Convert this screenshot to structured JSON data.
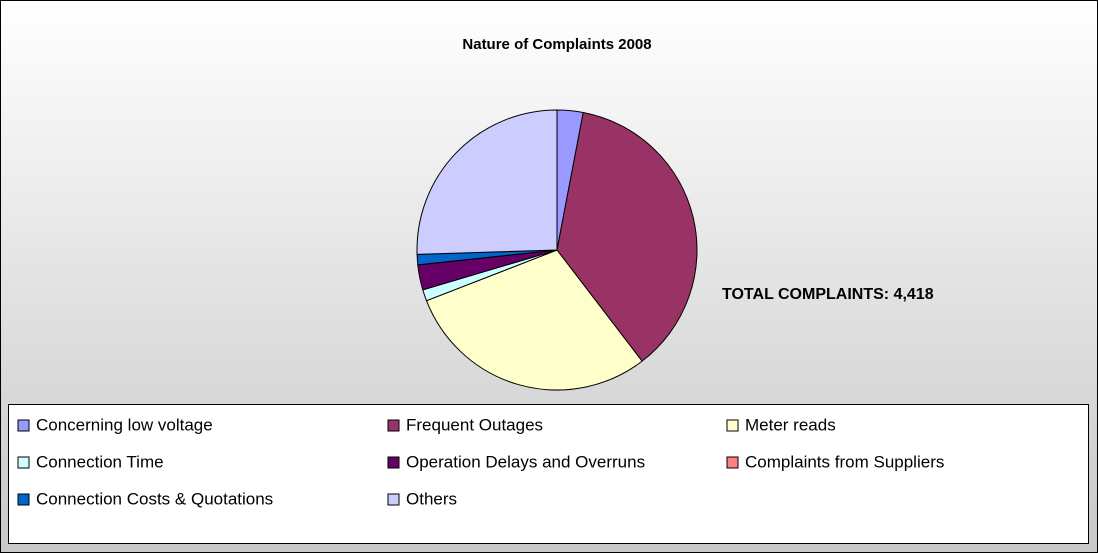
{
  "chart_data": {
    "type": "pie",
    "title": "Nature of Complaints 2008",
    "annotation": "TOTAL COMPLAINTS: 4,418",
    "categories": [
      "Concerning low voltage",
      "Frequent Outages",
      "Meter reads",
      "Connection Time",
      "Operation Delays and Overruns",
      "Complaints from Suppliers",
      "Connection Costs & Quotations",
      "Others"
    ],
    "values": [
      3,
      36.6,
      29.5,
      1.3,
      2.9,
      0,
      1.2,
      25.5
    ],
    "colors": [
      "#9999ff",
      "#993366",
      "#ffffcc",
      "#ccffff",
      "#660066",
      "#ff8080",
      "#0066cc",
      "#ccccff"
    ],
    "legend": "bottom"
  }
}
